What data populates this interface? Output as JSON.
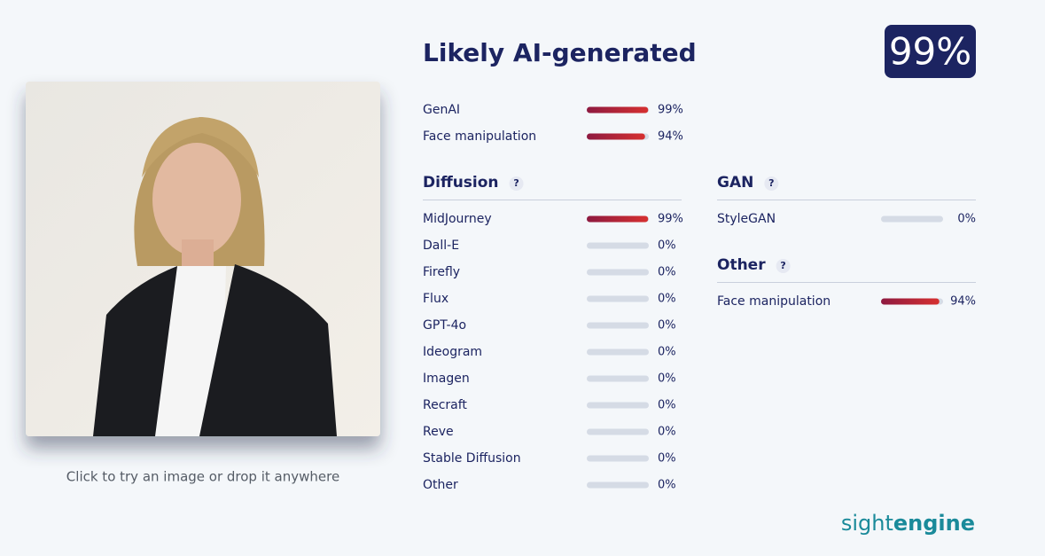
{
  "header": {
    "title": "Likely AI-generated",
    "score": 99,
    "score_label": "99%"
  },
  "caption": "Click to try an image or drop it anywhere",
  "summary": [
    {
      "label": "GenAI",
      "value": 99,
      "value_label": "99%"
    },
    {
      "label": "Face manipulation",
      "value": 94,
      "value_label": "94%"
    }
  ],
  "sections": [
    {
      "title": "Diffusion",
      "help": "?",
      "items": [
        {
          "label": "MidJourney",
          "value": 99,
          "value_label": "99%"
        },
        {
          "label": "Dall-E",
          "value": 0,
          "value_label": "0%"
        },
        {
          "label": "Firefly",
          "value": 0,
          "value_label": "0%"
        },
        {
          "label": "Flux",
          "value": 0,
          "value_label": "0%"
        },
        {
          "label": "GPT-4o",
          "value": 0,
          "value_label": "0%"
        },
        {
          "label": "Ideogram",
          "value": 0,
          "value_label": "0%"
        },
        {
          "label": "Imagen",
          "value": 0,
          "value_label": "0%"
        },
        {
          "label": "Recraft",
          "value": 0,
          "value_label": "0%"
        },
        {
          "label": "Reve",
          "value": 0,
          "value_label": "0%"
        },
        {
          "label": "Stable Diffusion",
          "value": 0,
          "value_label": "0%"
        },
        {
          "label": "Other",
          "value": 0,
          "value_label": "0%"
        }
      ]
    },
    {
      "title": "GAN",
      "help": "?",
      "items": [
        {
          "label": "StyleGAN",
          "value": 0,
          "value_label": "0%"
        }
      ]
    },
    {
      "title": "Other",
      "help": "?",
      "items": [
        {
          "label": "Face manipulation",
          "value": 94,
          "value_label": "94%"
        }
      ]
    }
  ],
  "logo": {
    "light": "sight",
    "bold": "engine"
  }
}
